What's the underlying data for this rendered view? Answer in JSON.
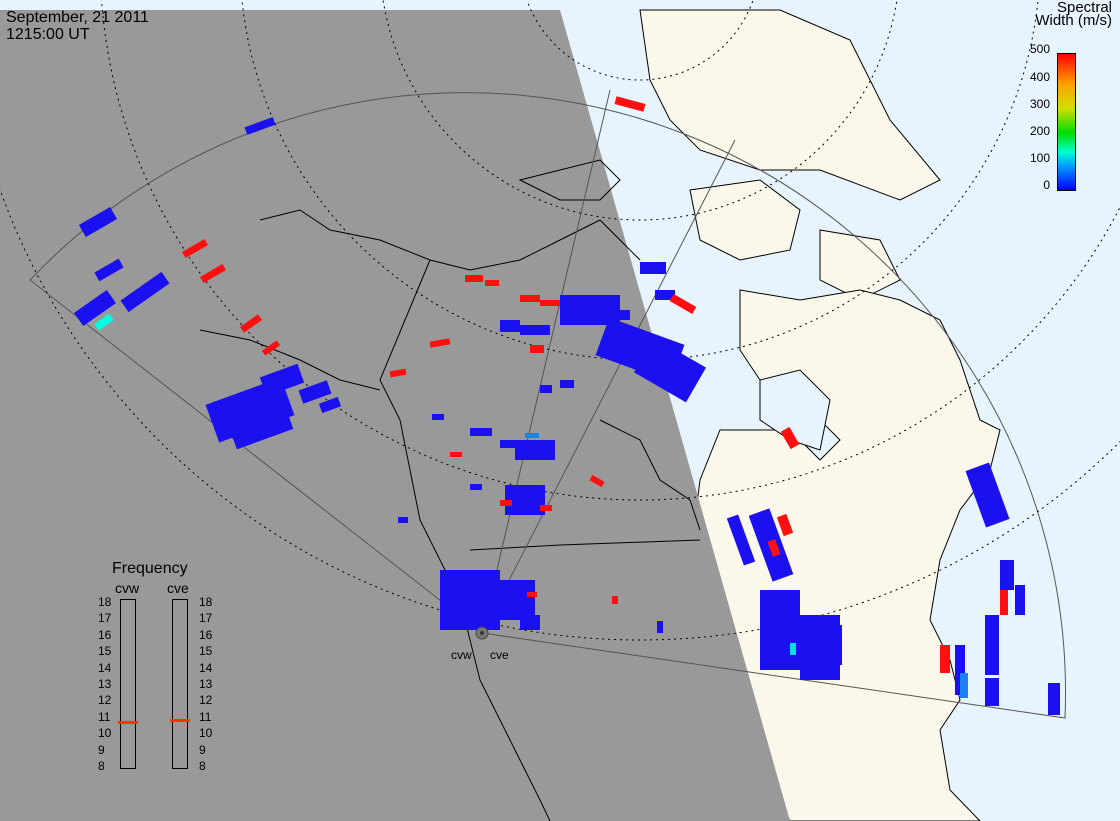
{
  "header": {
    "date": "September, 21 2011",
    "time": "1215:00 UT"
  },
  "colorbar": {
    "title_line1": "Spectral",
    "title_line2": "Width (m/s)",
    "ticks": [
      "500",
      "400",
      "300",
      "200",
      "100",
      "0"
    ]
  },
  "frequency": {
    "title": "Frequency",
    "radars": [
      "cvw",
      "cve"
    ],
    "scale": [
      "18",
      "17",
      "16",
      "15",
      "14",
      "13",
      "12",
      "11",
      "10",
      "9",
      "8"
    ],
    "cvw_mhz": 10.7,
    "cve_mhz": 10.8
  },
  "sites": {
    "west": "cvw",
    "east": "cve"
  },
  "colors": {
    "night": "#999999",
    "day_land": "#fbf7ea",
    "day_ocean": "#e8f4fd",
    "low_width": "#1a10f0",
    "high_width": "#ff1010"
  }
}
